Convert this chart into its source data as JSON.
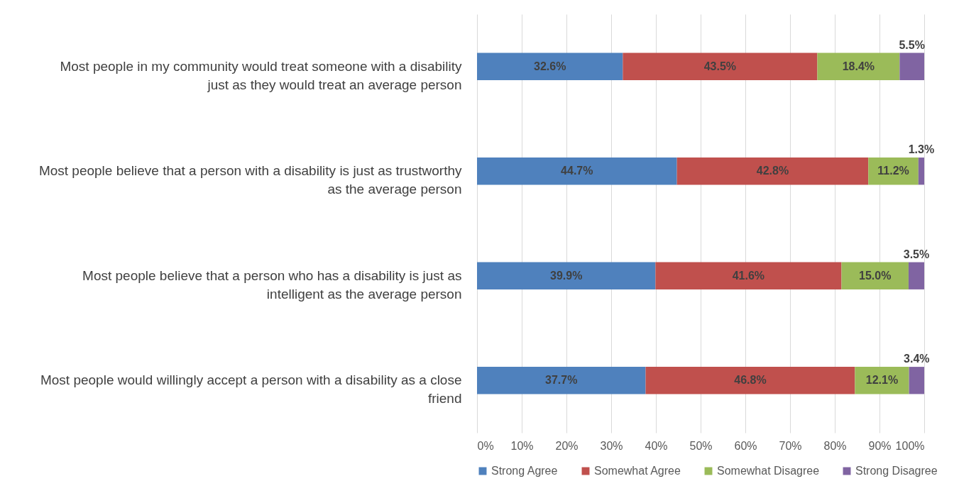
{
  "chart_data": {
    "type": "bar",
    "orientation": "horizontal",
    "stacked": true,
    "categories": [
      "Most people in my community would treat someone with a disability just as they would treat an average person",
      "Most people believe that a person with a disability is just as trustworthy as the average person",
      "Most people believe that a person who has a disability is just as intelligent as the average person",
      "Most people would willingly accept a person with a disability as a close friend"
    ],
    "series": [
      {
        "name": "Strong Agree",
        "color": "#4f81bd",
        "values": [
          32.6,
          44.7,
          39.9,
          37.7
        ],
        "value_labels": [
          "32.6%",
          "44.7%",
          "39.9%",
          "37.7%"
        ]
      },
      {
        "name": "Somewhat Agree",
        "color": "#c0504d",
        "values": [
          43.5,
          42.8,
          41.6,
          46.8
        ],
        "value_labels": [
          "43.5%",
          "42.8%",
          "41.6%",
          "46.8%"
        ]
      },
      {
        "name": "Somewhat Disagree",
        "color": "#9bbb59",
        "values": [
          18.4,
          11.2,
          15.0,
          12.1
        ],
        "value_labels": [
          "18.4%",
          "11.2%",
          "15.0%",
          "12.1%"
        ]
      },
      {
        "name": "Strong Disagree",
        "color": "#8064a2",
        "values": [
          5.5,
          1.3,
          3.5,
          3.4
        ],
        "value_labels": [
          "5.5%",
          "1.3%",
          "3.5%",
          "3.4%"
        ]
      }
    ],
    "xlim": [
      0,
      100
    ],
    "xticks": [
      {
        "value": 0,
        "label": "0%"
      },
      {
        "value": 10,
        "label": "10%"
      },
      {
        "value": 20,
        "label": "20%"
      },
      {
        "value": 30,
        "label": "30%"
      },
      {
        "value": 40,
        "label": "40%"
      },
      {
        "value": 50,
        "label": "50%"
      },
      {
        "value": 60,
        "label": "60%"
      },
      {
        "value": 70,
        "label": "70%"
      },
      {
        "value": 80,
        "label": "80%"
      },
      {
        "value": 90,
        "label": "90%"
      },
      {
        "value": 100,
        "label": "100%"
      }
    ],
    "grid": "x",
    "legend": "bottom"
  }
}
